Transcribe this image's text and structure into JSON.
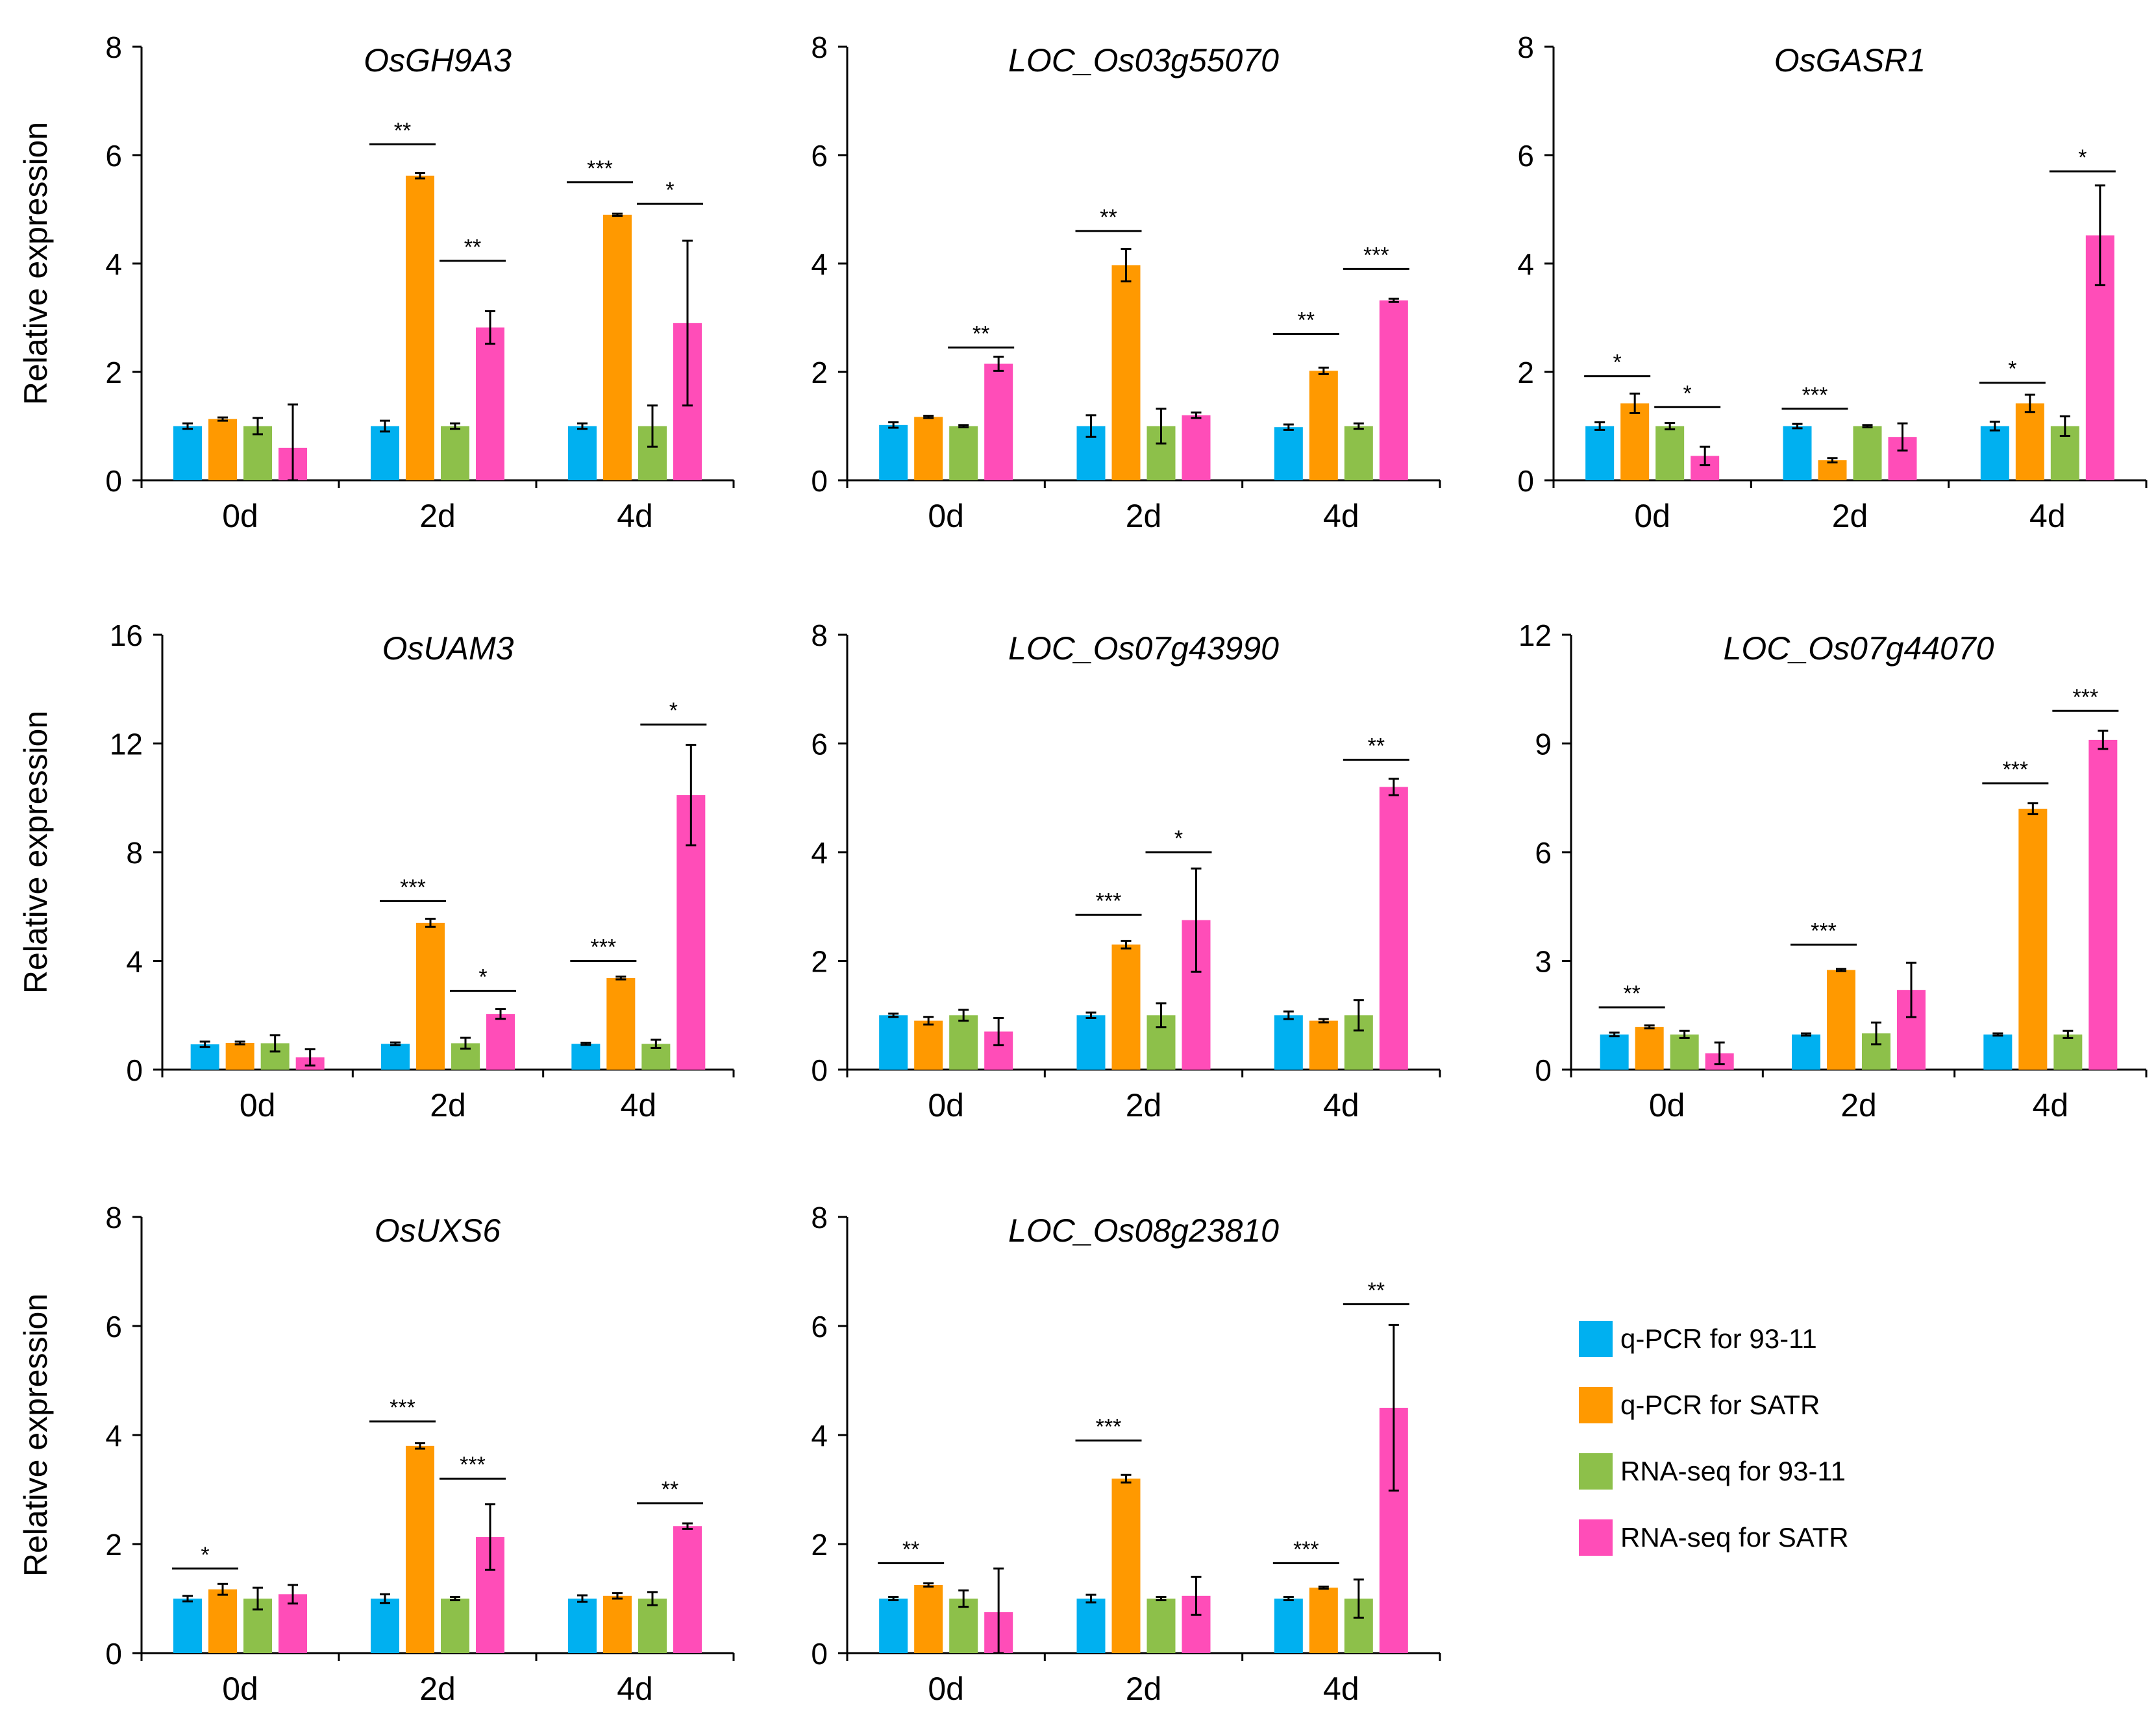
{
  "figure": {
    "y_axis_label": "Relative expression",
    "legend": [
      {
        "label": "q-PCR for 93-11",
        "color": "#00B0F0"
      },
      {
        "label": "q-PCR for SATR",
        "color": "#FF9900"
      },
      {
        "label": "RNA-seq for 93-11",
        "color": "#8DC04A"
      },
      {
        "label": "RNA-seq for SATR",
        "color": "#FF4DB8"
      }
    ]
  },
  "chart_data": [
    {
      "type": "bar",
      "title": "OsGH9A3",
      "categories": [
        "0d",
        "2d",
        "4d"
      ],
      "ylim": [
        0,
        8
      ],
      "yticks": [
        0,
        2,
        4,
        6,
        8
      ],
      "series": [
        {
          "name": "q-PCR for 93-11",
          "values": [
            1.0,
            1.0,
            1.0
          ],
          "errors": [
            0.05,
            0.1,
            0.05
          ]
        },
        {
          "name": "q-PCR for SATR",
          "values": [
            1.13,
            5.62,
            4.9
          ],
          "errors": [
            0.03,
            0.05,
            0.02
          ]
        },
        {
          "name": "RNA-seq for 93-11",
          "values": [
            1.0,
            1.0,
            1.0
          ],
          "errors": [
            0.15,
            0.05,
            0.38
          ]
        },
        {
          "name": "RNA-seq for SATR",
          "values": [
            0.6,
            2.82,
            2.9
          ],
          "errors": [
            0.8,
            0.3,
            1.52
          ]
        }
      ],
      "significance": [
        {
          "category": 1,
          "from": 0,
          "to": 1,
          "label": "**",
          "y": 6.2
        },
        {
          "category": 1,
          "from": 2,
          "to": 3,
          "label": "**",
          "y": 4.05
        },
        {
          "category": 2,
          "from": 0,
          "to": 1,
          "label": "***",
          "y": 5.5
        },
        {
          "category": 2,
          "from": 2,
          "to": 3,
          "label": "*",
          "y": 5.1
        }
      ]
    },
    {
      "type": "bar",
      "title": "LOC_Os03g55070",
      "categories": [
        "0d",
        "2d",
        "4d"
      ],
      "ylim": [
        0,
        8
      ],
      "yticks": [
        0,
        2,
        4,
        6,
        8
      ],
      "series": [
        {
          "name": "q-PCR for 93-11",
          "values": [
            1.02,
            1.0,
            0.98
          ],
          "errors": [
            0.05,
            0.2,
            0.05
          ]
        },
        {
          "name": "q-PCR for SATR",
          "values": [
            1.17,
            3.97,
            2.02
          ],
          "errors": [
            0.02,
            0.3,
            0.06
          ]
        },
        {
          "name": "RNA-seq for 93-11",
          "values": [
            1.0,
            1.0,
            1.0
          ],
          "errors": [
            0.02,
            0.32,
            0.05
          ]
        },
        {
          "name": "RNA-seq for SATR",
          "values": [
            2.15,
            1.2,
            3.32
          ],
          "errors": [
            0.13,
            0.05,
            0.03
          ]
        }
      ],
      "significance": [
        {
          "category": 0,
          "from": 2,
          "to": 3,
          "label": "**",
          "y": 2.45
        },
        {
          "category": 1,
          "from": 0,
          "to": 1,
          "label": "**",
          "y": 4.6
        },
        {
          "category": 2,
          "from": 0,
          "to": 1,
          "label": "**",
          "y": 2.7
        },
        {
          "category": 2,
          "from": 2,
          "to": 3,
          "label": "***",
          "y": 3.9
        }
      ]
    },
    {
      "type": "bar",
      "title": "OsGASR1",
      "categories": [
        "0d",
        "2d",
        "4d"
      ],
      "ylim": [
        0,
        8
      ],
      "yticks": [
        0,
        2,
        4,
        6,
        8
      ],
      "series": [
        {
          "name": "q-PCR for 93-11",
          "values": [
            1.0,
            1.0,
            1.0
          ],
          "errors": [
            0.07,
            0.04,
            0.08
          ]
        },
        {
          "name": "q-PCR for SATR",
          "values": [
            1.42,
            0.37,
            1.42
          ],
          "errors": [
            0.18,
            0.04,
            0.16
          ]
        },
        {
          "name": "RNA-seq for 93-11",
          "values": [
            1.0,
            1.0,
            1.0
          ],
          "errors": [
            0.06,
            0.02,
            0.18
          ]
        },
        {
          "name": "RNA-seq for SATR",
          "values": [
            0.45,
            0.8,
            4.52
          ],
          "errors": [
            0.17,
            0.25,
            0.92
          ]
        }
      ],
      "significance": [
        {
          "category": 0,
          "from": 0,
          "to": 1,
          "label": "*",
          "y": 1.92
        },
        {
          "category": 0,
          "from": 2,
          "to": 3,
          "label": "*",
          "y": 1.35
        },
        {
          "category": 1,
          "from": 0,
          "to": 1,
          "label": "***",
          "y": 1.32
        },
        {
          "category": 2,
          "from": 0,
          "to": 1,
          "label": "*",
          "y": 1.8
        },
        {
          "category": 2,
          "from": 2,
          "to": 3,
          "label": "*",
          "y": 5.7
        }
      ]
    },
    {
      "type": "bar",
      "title": "OsUAM3",
      "categories": [
        "0d",
        "2d",
        "4d"
      ],
      "ylim": [
        0,
        16
      ],
      "yticks": [
        0,
        4,
        8,
        12,
        16
      ],
      "series": [
        {
          "name": "q-PCR for 93-11",
          "values": [
            0.93,
            0.95,
            0.95
          ],
          "errors": [
            0.1,
            0.05,
            0.04
          ]
        },
        {
          "name": "q-PCR for SATR",
          "values": [
            0.98,
            5.4,
            3.37
          ],
          "errors": [
            0.05,
            0.15,
            0.05
          ]
        },
        {
          "name": "RNA-seq for 93-11",
          "values": [
            0.97,
            0.97,
            0.95
          ],
          "errors": [
            0.3,
            0.2,
            0.15
          ]
        },
        {
          "name": "RNA-seq for SATR",
          "values": [
            0.45,
            2.05,
            10.1
          ],
          "errors": [
            0.3,
            0.18,
            1.85
          ]
        }
      ],
      "significance": [
        {
          "category": 1,
          "from": 0,
          "to": 1,
          "label": "***",
          "y": 6.2
        },
        {
          "category": 1,
          "from": 2,
          "to": 3,
          "label": "*",
          "y": 2.9
        },
        {
          "category": 2,
          "from": 0,
          "to": 1,
          "label": "***",
          "y": 4.0
        },
        {
          "category": 2,
          "from": 2,
          "to": 3,
          "label": "*",
          "y": 12.7
        }
      ]
    },
    {
      "type": "bar",
      "title": "LOC_Os07g43990",
      "categories": [
        "0d",
        "2d",
        "4d"
      ],
      "ylim": [
        0,
        8
      ],
      "yticks": [
        0,
        2,
        4,
        6,
        8
      ],
      "series": [
        {
          "name": "q-PCR for 93-11",
          "values": [
            1.0,
            1.0,
            1.0
          ],
          "errors": [
            0.03,
            0.05,
            0.07
          ]
        },
        {
          "name": "q-PCR for SATR",
          "values": [
            0.9,
            2.3,
            0.9
          ],
          "errors": [
            0.07,
            0.07,
            0.03
          ]
        },
        {
          "name": "RNA-seq for 93-11",
          "values": [
            1.0,
            1.0,
            1.0
          ],
          "errors": [
            0.1,
            0.22,
            0.28
          ]
        },
        {
          "name": "RNA-seq for SATR",
          "values": [
            0.7,
            2.75,
            5.2
          ],
          "errors": [
            0.25,
            0.95,
            0.15
          ]
        }
      ],
      "significance": [
        {
          "category": 1,
          "from": 0,
          "to": 1,
          "label": "***",
          "y": 2.85
        },
        {
          "category": 1,
          "from": 2,
          "to": 3,
          "label": "*",
          "y": 4.0
        },
        {
          "category": 2,
          "from": 2,
          "to": 3,
          "label": "**",
          "y": 5.7
        }
      ]
    },
    {
      "type": "bar",
      "title": "LOC_Os07g44070",
      "categories": [
        "0d",
        "2d",
        "4d"
      ],
      "ylim": [
        0,
        12
      ],
      "yticks": [
        0,
        3,
        6,
        9,
        12
      ],
      "series": [
        {
          "name": "q-PCR for 93-11",
          "values": [
            0.97,
            0.97,
            0.97
          ],
          "errors": [
            0.05,
            0.03,
            0.03
          ]
        },
        {
          "name": "q-PCR for SATR",
          "values": [
            1.18,
            2.75,
            7.2
          ],
          "errors": [
            0.04,
            0.03,
            0.15
          ]
        },
        {
          "name": "RNA-seq for 93-11",
          "values": [
            0.97,
            1.0,
            0.97
          ],
          "errors": [
            0.1,
            0.3,
            0.1
          ]
        },
        {
          "name": "RNA-seq for SATR",
          "values": [
            0.45,
            2.2,
            9.1
          ],
          "errors": [
            0.3,
            0.75,
            0.25
          ]
        }
      ],
      "significance": [
        {
          "category": 0,
          "from": 0,
          "to": 1,
          "label": "**",
          "y": 1.72
        },
        {
          "category": 1,
          "from": 0,
          "to": 1,
          "label": "***",
          "y": 3.45
        },
        {
          "category": 2,
          "from": 0,
          "to": 1,
          "label": "***",
          "y": 7.9
        },
        {
          "category": 2,
          "from": 2,
          "to": 3,
          "label": "***",
          "y": 9.9
        }
      ]
    },
    {
      "type": "bar",
      "title": "OsUXS6",
      "categories": [
        "0d",
        "2d",
        "4d"
      ],
      "ylim": [
        0,
        8
      ],
      "yticks": [
        0,
        2,
        4,
        6,
        8
      ],
      "series": [
        {
          "name": "q-PCR for 93-11",
          "values": [
            1.0,
            1.0,
            1.0
          ],
          "errors": [
            0.05,
            0.08,
            0.06
          ]
        },
        {
          "name": "q-PCR for SATR",
          "values": [
            1.17,
            3.8,
            1.05
          ],
          "errors": [
            0.1,
            0.05,
            0.05
          ]
        },
        {
          "name": "RNA-seq for 93-11",
          "values": [
            1.0,
            1.0,
            1.0
          ],
          "errors": [
            0.2,
            0.03,
            0.12
          ]
        },
        {
          "name": "RNA-seq for SATR",
          "values": [
            1.08,
            2.13,
            2.33
          ],
          "errors": [
            0.17,
            0.6,
            0.05
          ]
        }
      ],
      "significance": [
        {
          "category": 0,
          "from": 0,
          "to": 1,
          "label": "*",
          "y": 1.55
        },
        {
          "category": 1,
          "from": 0,
          "to": 1,
          "label": "***",
          "y": 4.25
        },
        {
          "category": 1,
          "from": 2,
          "to": 3,
          "label": "***",
          "y": 3.2
        },
        {
          "category": 2,
          "from": 2,
          "to": 3,
          "label": "**",
          "y": 2.75
        }
      ]
    },
    {
      "type": "bar",
      "title": "LOC_Os08g23810",
      "categories": [
        "0d",
        "2d",
        "4d"
      ],
      "ylim": [
        0,
        8
      ],
      "yticks": [
        0,
        2,
        4,
        6,
        8
      ],
      "series": [
        {
          "name": "q-PCR for 93-11",
          "values": [
            1.0,
            1.0,
            1.0
          ],
          "errors": [
            0.03,
            0.07,
            0.03
          ]
        },
        {
          "name": "q-PCR for SATR",
          "values": [
            1.25,
            3.2,
            1.2
          ],
          "errors": [
            0.03,
            0.07,
            0.02
          ]
        },
        {
          "name": "RNA-seq for 93-11",
          "values": [
            1.0,
            1.0,
            1.0
          ],
          "errors": [
            0.15,
            0.03,
            0.35
          ]
        },
        {
          "name": "RNA-seq for SATR",
          "values": [
            0.75,
            1.05,
            4.5
          ],
          "errors": [
            0.8,
            0.35,
            1.52
          ]
        }
      ],
      "significance": [
        {
          "category": 0,
          "from": 0,
          "to": 1,
          "label": "**",
          "y": 1.65
        },
        {
          "category": 1,
          "from": 0,
          "to": 1,
          "label": "***",
          "y": 3.9
        },
        {
          "category": 2,
          "from": 0,
          "to": 1,
          "label": "***",
          "y": 1.65
        },
        {
          "category": 2,
          "from": 2,
          "to": 3,
          "label": "**",
          "y": 6.4
        }
      ]
    }
  ]
}
